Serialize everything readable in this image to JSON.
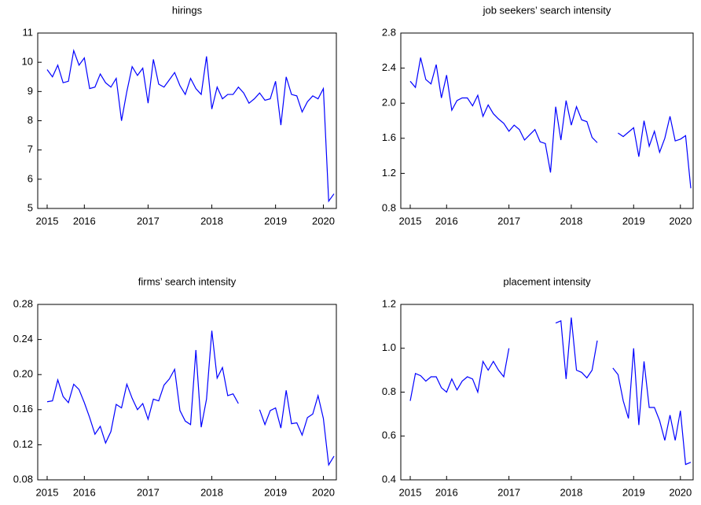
{
  "chart_data": [
    {
      "type": "line",
      "title": "hirings",
      "color": "#0000ff",
      "categories": [
        "2015",
        null,
        null,
        null,
        null,
        null,
        null,
        "2016",
        null,
        null,
        null,
        null,
        null,
        null,
        null,
        null,
        null,
        null,
        null,
        "2017",
        null,
        null,
        null,
        null,
        null,
        null,
        null,
        null,
        null,
        null,
        null,
        "2018",
        null,
        null,
        null,
        null,
        null,
        null,
        null,
        null,
        null,
        null,
        null,
        "2019",
        null,
        null,
        null,
        null,
        null,
        null,
        null,
        null,
        "2020",
        null,
        null
      ],
      "values": [
        9.75,
        9.5,
        9.9,
        9.3,
        9.35,
        10.4,
        9.9,
        10.15,
        9.1,
        9.15,
        9.6,
        9.3,
        9.15,
        9.45,
        8.0,
        9.0,
        9.85,
        9.55,
        9.8,
        8.6,
        10.1,
        9.25,
        9.15,
        9.4,
        9.65,
        9.2,
        8.9,
        9.45,
        9.1,
        8.9,
        10.2,
        8.4,
        9.15,
        8.75,
        8.9,
        8.9,
        9.15,
        8.95,
        8.6,
        8.75,
        8.95,
        8.7,
        8.75,
        9.35,
        7.85,
        9.5,
        8.9,
        8.85,
        8.3,
        8.65,
        8.85,
        8.75,
        9.1,
        5.25,
        5.5
      ],
      "ylim": [
        5,
        11
      ],
      "yticks": [
        5,
        6,
        7,
        8,
        9,
        10,
        11
      ]
    },
    {
      "type": "line",
      "title": "job seekers’ search intensity",
      "color": "#0000ff",
      "categories": [
        "2015",
        null,
        null,
        null,
        null,
        null,
        null,
        "2016",
        null,
        null,
        null,
        null,
        null,
        null,
        null,
        null,
        null,
        null,
        null,
        "2017",
        null,
        null,
        null,
        null,
        null,
        null,
        null,
        null,
        null,
        null,
        null,
        "2018",
        null,
        null,
        null,
        null,
        null,
        null,
        null,
        null,
        null,
        null,
        null,
        "2019",
        null,
        null,
        null,
        null,
        null,
        null,
        null,
        null,
        "2020",
        null,
        null
      ],
      "values": [
        2.25,
        2.18,
        2.52,
        2.27,
        2.22,
        2.44,
        2.06,
        2.32,
        1.92,
        2.03,
        2.06,
        2.06,
        1.97,
        2.09,
        1.85,
        1.98,
        1.88,
        1.82,
        1.77,
        1.68,
        1.75,
        1.7,
        1.58,
        1.64,
        1.7,
        1.56,
        1.54,
        1.21,
        1.96,
        1.58,
        2.03,
        1.75,
        1.96,
        1.81,
        1.79,
        1.61,
        1.55,
        null,
        null,
        null,
        1.66,
        1.62,
        1.67,
        1.72,
        1.39,
        1.8,
        1.51,
        1.68,
        1.44,
        1.6,
        1.85,
        1.57,
        1.59,
        1.63,
        1.03
      ],
      "ylim": [
        0.8,
        2.8
      ],
      "yticks": [
        0.8,
        1.2,
        1.6,
        {
          "value": 2,
          "label": "2.0"
        },
        2.4,
        2.8
      ]
    },
    {
      "type": "line",
      "title": "firms’ search intensity",
      "color": "#0000ff",
      "categories": [
        "2015",
        null,
        null,
        null,
        null,
        null,
        null,
        "2016",
        null,
        null,
        null,
        null,
        null,
        null,
        null,
        null,
        null,
        null,
        null,
        "2017",
        null,
        null,
        null,
        null,
        null,
        null,
        null,
        null,
        null,
        null,
        null,
        "2018",
        null,
        null,
        null,
        null,
        null,
        null,
        null,
        null,
        null,
        null,
        null,
        "2019",
        null,
        null,
        null,
        null,
        null,
        null,
        null,
        null,
        "2020",
        null,
        null
      ],
      "values": [
        0.169,
        0.17,
        0.194,
        0.175,
        0.168,
        0.189,
        0.183,
        0.168,
        0.151,
        0.132,
        0.141,
        0.122,
        0.135,
        0.166,
        0.162,
        0.189,
        0.173,
        0.16,
        0.167,
        0.149,
        0.172,
        0.17,
        0.188,
        0.195,
        0.206,
        0.159,
        0.147,
        0.143,
        0.228,
        0.14,
        0.172,
        0.25,
        0.196,
        0.208,
        0.176,
        0.178,
        0.167,
        null,
        null,
        null,
        0.16,
        0.143,
        0.159,
        0.162,
        0.139,
        0.182,
        0.144,
        0.145,
        0.131,
        0.151,
        0.155,
        0.176,
        0.15,
        0.097,
        0.107
      ],
      "ylim": [
        0.08,
        0.28
      ],
      "yticks": [
        0.08,
        0.12,
        0.16,
        {
          "value": 0.2,
          "label": "0.20"
        },
        0.24,
        0.28
      ]
    },
    {
      "type": "line",
      "title": "placement intensity",
      "color": "#0000ff",
      "categories": [
        "2015",
        null,
        null,
        null,
        null,
        null,
        null,
        "2016",
        null,
        null,
        null,
        null,
        null,
        null,
        null,
        null,
        null,
        null,
        null,
        "2017",
        null,
        null,
        null,
        null,
        null,
        null,
        null,
        null,
        null,
        null,
        null,
        "2018",
        null,
        null,
        null,
        null,
        null,
        null,
        null,
        null,
        null,
        null,
        null,
        "2019",
        null,
        null,
        null,
        null,
        null,
        null,
        null,
        null,
        "2020",
        null,
        null
      ],
      "values": [
        0.76,
        0.885,
        0.875,
        0.85,
        0.87,
        0.87,
        0.82,
        0.8,
        0.86,
        0.81,
        0.85,
        0.87,
        0.86,
        0.8,
        0.94,
        0.9,
        0.94,
        0.9,
        0.87,
        1.0,
        null,
        null,
        null,
        null,
        null,
        null,
        null,
        null,
        1.115,
        1.125,
        0.86,
        1.14,
        0.9,
        0.89,
        0.865,
        0.9,
        1.035,
        null,
        null,
        0.91,
        0.88,
        0.76,
        0.68,
        1.0,
        0.65,
        0.94,
        0.73,
        0.73,
        0.67,
        0.58,
        0.695,
        0.58,
        0.715,
        0.47,
        0.48
      ],
      "ylim": [
        0.4,
        1.2
      ],
      "yticks": [
        0.4,
        0.6,
        0.8,
        {
          "value": 1,
          "label": "1.0"
        },
        1.2
      ]
    }
  ]
}
